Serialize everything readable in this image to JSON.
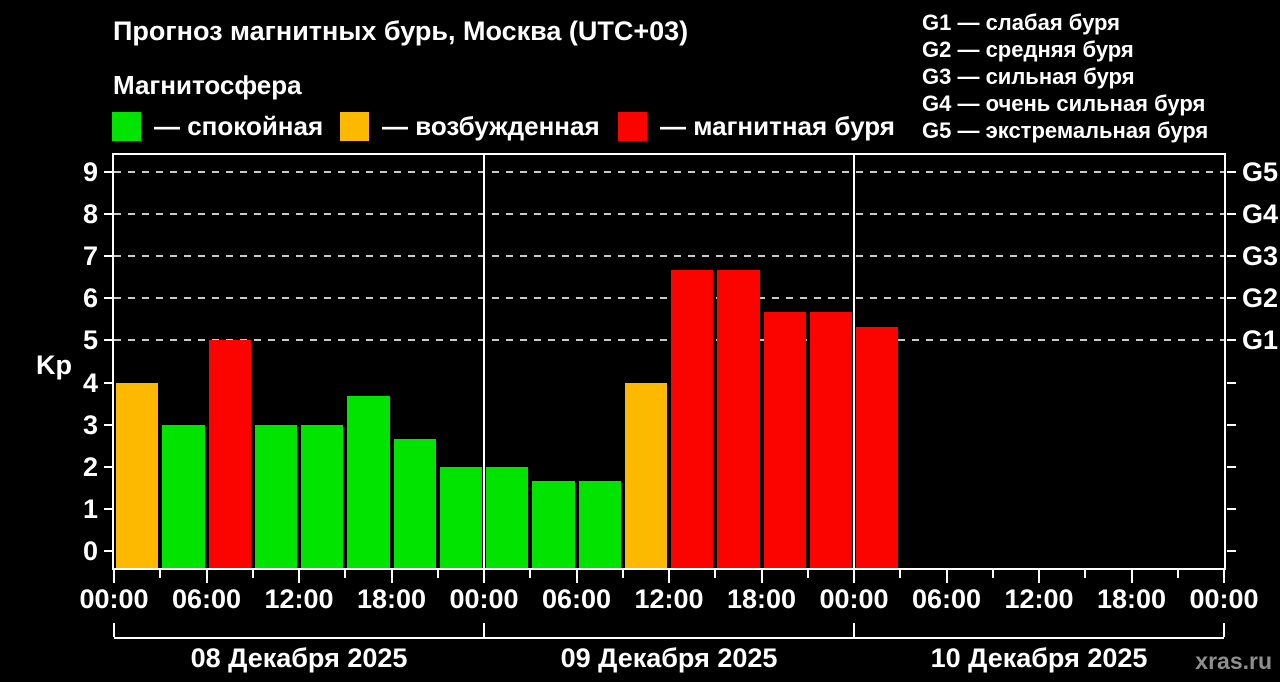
{
  "header": {
    "title": "Прогноз магнитных бурь, Москва (UTC+03)",
    "subtitle": "Магнитосфера"
  },
  "legend": [
    {
      "key": "quiet",
      "label": "— спокойная"
    },
    {
      "key": "excited",
      "label": "— возбужденная"
    },
    {
      "key": "storm",
      "label": "— магнитная буря"
    }
  ],
  "storm_scale": [
    "G1 — слабая буря",
    "G2 — средняя буря",
    "G3 — сильная буря",
    "G4 — очень сильная буря",
    "G5 — экстремальная буря"
  ],
  "colors": {
    "quiet": "#00e400",
    "excited": "#fdb800",
    "storm": "#fb0400",
    "background": "#000000",
    "text": "#ffffff",
    "grid": "#c9c9c9",
    "watermark": "#8f8f8f"
  },
  "watermark": "xras.ru",
  "chart_data": {
    "type": "bar",
    "ylabel": "Kp",
    "ylim": [
      -0.4,
      9.4
    ],
    "yticks": [
      0,
      1,
      2,
      3,
      4,
      5,
      6,
      7,
      8,
      9
    ],
    "grid_lines_kp": [
      5,
      6,
      7,
      8,
      9
    ],
    "right_axis": [
      {
        "kp": 5,
        "label": "G1"
      },
      {
        "kp": 6,
        "label": "G2"
      },
      {
        "kp": 7,
        "label": "G3"
      },
      {
        "kp": 8,
        "label": "G4"
      },
      {
        "kp": 9,
        "label": "G5"
      }
    ],
    "x_hours_total": 72,
    "bar_hours": 3,
    "x_ticks_major_hours": [
      0,
      6,
      12,
      18,
      24,
      30,
      36,
      42,
      48,
      54,
      60,
      66,
      72
    ],
    "x_tick_labels": [
      "00:00",
      "06:00",
      "12:00",
      "18:00",
      "00:00",
      "06:00",
      "12:00",
      "18:00",
      "00:00",
      "06:00",
      "12:00",
      "18:00",
      "00:00"
    ],
    "day_boundaries_hours": [
      0,
      24,
      48,
      72
    ],
    "days": [
      {
        "label": "08 Декабря 2025",
        "start_hour": 0
      },
      {
        "label": "09 Декабря 2025",
        "start_hour": 24
      },
      {
        "label": "10 Декабря 2025",
        "start_hour": 48
      }
    ],
    "bars": [
      {
        "start_hour": 0,
        "kp": 4,
        "status": "excited"
      },
      {
        "start_hour": 3,
        "kp": 3,
        "status": "quiet"
      },
      {
        "start_hour": 6,
        "kp": 5,
        "status": "storm"
      },
      {
        "start_hour": 9,
        "kp": 3,
        "status": "quiet"
      },
      {
        "start_hour": 12,
        "kp": 3,
        "status": "quiet"
      },
      {
        "start_hour": 15,
        "kp": 3.67,
        "status": "quiet"
      },
      {
        "start_hour": 18,
        "kp": 2.67,
        "status": "quiet"
      },
      {
        "start_hour": 21,
        "kp": 2,
        "status": "quiet"
      },
      {
        "start_hour": 24,
        "kp": 2,
        "status": "quiet"
      },
      {
        "start_hour": 27,
        "kp": 1.67,
        "status": "quiet"
      },
      {
        "start_hour": 30,
        "kp": 1.67,
        "status": "quiet"
      },
      {
        "start_hour": 33,
        "kp": 4,
        "status": "excited"
      },
      {
        "start_hour": 36,
        "kp": 6.67,
        "status": "storm"
      },
      {
        "start_hour": 39,
        "kp": 6.67,
        "status": "storm"
      },
      {
        "start_hour": 42,
        "kp": 5.67,
        "status": "storm"
      },
      {
        "start_hour": 45,
        "kp": 5.67,
        "status": "storm"
      },
      {
        "start_hour": 48,
        "kp": 5.33,
        "status": "storm"
      }
    ]
  }
}
